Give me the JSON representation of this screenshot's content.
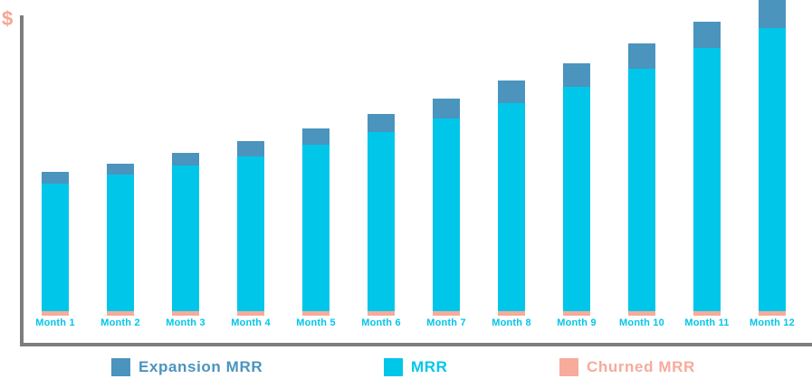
{
  "colors": {
    "dollar": "#F9A492",
    "axis": "#7D7D7D",
    "month_label": "#00C6EA"
  },
  "chart_data": {
    "type": "bar",
    "stacked": true,
    "title": "",
    "xlabel": "",
    "ylabel": "$",
    "y_axis_ticks": "none (no numeric labels, only $ symbol at axis top)",
    "grid": false,
    "legend_position": "bottom",
    "values_unit": "relative height units (axis unlabeled, read from pixels)",
    "categories": [
      "Month 1",
      "Month 2",
      "Month 3",
      "Month 4",
      "Month 5",
      "Month 6",
      "Month 7",
      "Month 8",
      "Month 9",
      "Month 10",
      "Month 11",
      "Month 12"
    ],
    "series": [
      {
        "name": "Churned MRR",
        "color": "#F6AB9B",
        "stack_position": "bottom",
        "values": [
          5,
          5,
          5,
          5,
          5,
          5,
          5,
          5,
          5,
          5,
          5,
          5
        ]
      },
      {
        "name": "MRR",
        "color": "#00C6EA",
        "stack_position": "middle",
        "values": [
          141,
          151,
          161,
          171,
          184,
          198,
          213,
          230,
          248,
          268,
          291,
          313
        ]
      },
      {
        "name": "Expansion MRR",
        "color": "#4A94BE",
        "stack_position": "top",
        "values": [
          13,
          12,
          14,
          17,
          18,
          20,
          22,
          25,
          26,
          28,
          29,
          31
        ]
      }
    ],
    "stack_totals": [
      159,
      168,
      180,
      193,
      207,
      223,
      240,
      260,
      279,
      301,
      325,
      349
    ],
    "legend_order": [
      "Expansion MRR",
      "MRR",
      "Churned MRR"
    ]
  }
}
